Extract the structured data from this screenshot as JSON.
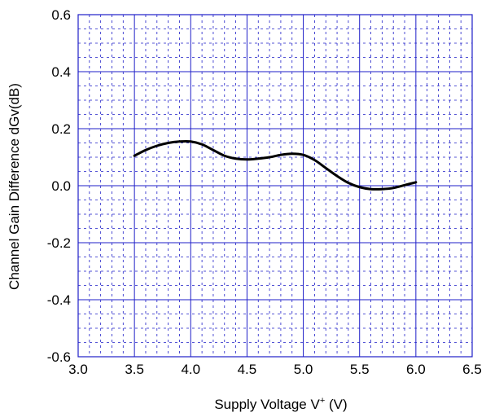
{
  "chart_data": {
    "type": "line",
    "title": "",
    "xlabel": "Supply Voltage  V",
    "xlabel_superscript": "+",
    "xlabel_unit": " (V)",
    "ylabel": "Channel Gain Difference  dGv(dB)",
    "xlim": [
      3.0,
      6.5
    ],
    "ylim": [
      -0.6,
      0.6
    ],
    "x_ticks": [
      "3.0",
      "3.5",
      "4.0",
      "4.5",
      "5.0",
      "5.5",
      "6.0",
      "6.5"
    ],
    "y_ticks": [
      "0.6",
      "0.4",
      "0.2",
      "0.0",
      "-0.2",
      "-0.4",
      "-0.6"
    ],
    "grid": true,
    "colors": {
      "grid": "#1f1fc8",
      "line": "#000000",
      "frame": "#1f1fc8"
    },
    "series": [
      {
        "x": [
          3.5,
          3.6,
          3.7,
          3.8,
          3.9,
          4.0,
          4.1,
          4.2,
          4.3,
          4.4,
          4.5,
          4.6,
          4.7,
          4.8,
          4.9,
          5.0,
          5.1,
          5.2,
          5.3,
          5.4,
          5.5,
          5.6,
          5.7,
          5.8,
          5.9,
          6.0
        ],
        "y": [
          0.105,
          0.125,
          0.14,
          0.15,
          0.155,
          0.155,
          0.145,
          0.125,
          0.105,
          0.095,
          0.092,
          0.095,
          0.1,
          0.108,
          0.112,
          0.108,
          0.09,
          0.062,
          0.034,
          0.01,
          -0.005,
          -0.012,
          -0.012,
          -0.008,
          0.002,
          0.012
        ]
      }
    ]
  }
}
